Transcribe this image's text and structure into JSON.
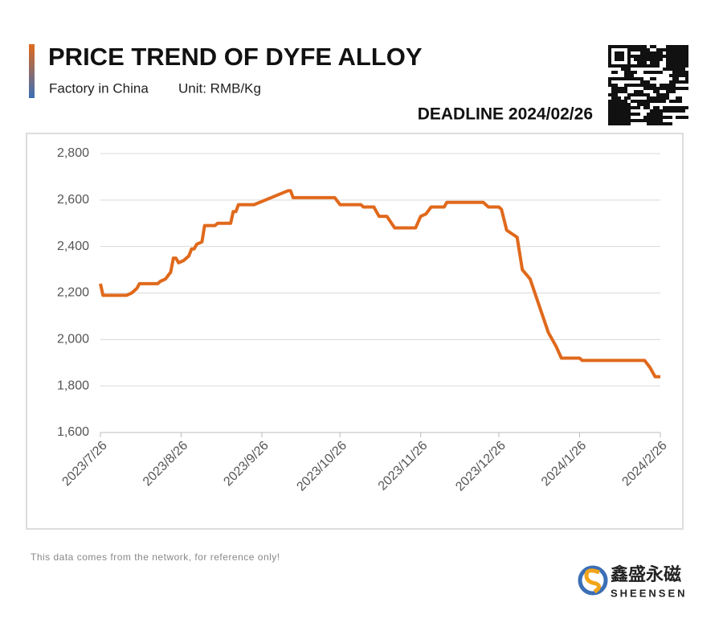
{
  "chart_data": {
    "type": "line",
    "title": "PRICE TREND OF DYFE ALLOY",
    "subtitle": "Factory in China",
    "unit": "Unit: RMB/Kg",
    "deadline": "DEADLINE 2024/02/26",
    "footnote": "This data comes from the network, for reference only!",
    "brand": "鑫盛永磁",
    "brand_latin": "SHEENSEN",
    "x": [
      "2023/7/26",
      "2023/7/27",
      "2023/8/5",
      "2023/8/7",
      "2023/8/9",
      "2023/8/10",
      "2023/8/17",
      "2023/8/18",
      "2023/8/20",
      "2023/8/22",
      "2023/8/23",
      "2023/8/24",
      "2023/8/25",
      "2023/8/27",
      "2023/8/29",
      "2023/8/30",
      "2023/8/31",
      "2023/9/1",
      "2023/9/3",
      "2023/9/4",
      "2023/9/8",
      "2023/9/9",
      "2023/9/14",
      "2023/9/15",
      "2023/9/16",
      "2023/9/17",
      "2023/9/23",
      "2023/10/6",
      "2023/10/7",
      "2023/10/8",
      "2023/10/24",
      "2023/10/26",
      "2023/11/3",
      "2023/11/4",
      "2023/11/8",
      "2023/11/9",
      "2023/11/10",
      "2023/11/13",
      "2023/11/16",
      "2023/11/24",
      "2023/11/26",
      "2023/11/28",
      "2023/11/30",
      "2023/12/5",
      "2023/12/6",
      "2023/12/20",
      "2023/12/22",
      "2023/12/26",
      "2023/12/27",
      "2023/12/29",
      "2024/1/2",
      "2024/1/4",
      "2024/1/7",
      "2024/1/14",
      "2024/1/17",
      "2024/1/19",
      "2024/1/26",
      "2024/1/27",
      "2024/2/20",
      "2024/2/22",
      "2024/2/24",
      "2024/2/26"
    ],
    "series": [
      {
        "name": "DyFe",
        "color": "#e0691c",
        "values": [
          2240,
          2190,
          2190,
          2200,
          2220,
          2240,
          2240,
          2250,
          2260,
          2290,
          2350,
          2350,
          2330,
          2340,
          2360,
          2390,
          2390,
          2410,
          2420,
          2490,
          2490,
          2500,
          2500,
          2550,
          2550,
          2580,
          2580,
          2640,
          2640,
          2610,
          2610,
          2580,
          2580,
          2570,
          2570,
          2550,
          2530,
          2530,
          2480,
          2480,
          2530,
          2540,
          2570,
          2570,
          2590,
          2590,
          2570,
          2570,
          2560,
          2470,
          2440,
          2300,
          2260,
          2030,
          1970,
          1920,
          1920,
          1910,
          1910,
          1880,
          1840,
          1840
        ]
      }
    ],
    "xlim": [
      "2023/7/26",
      "2024/2/26"
    ],
    "xticks": [
      "2023/7/26",
      "2023/8/26",
      "2023/9/26",
      "2023/10/26",
      "2023/11/26",
      "2023/12/26",
      "2024/1/26",
      "2024/2/26"
    ],
    "ylim": [
      1600,
      2800
    ],
    "yticks": [
      {
        "value": 1600,
        "label": "1,600"
      },
      {
        "value": 1800,
        "label": "1,800"
      },
      {
        "value": 2000,
        "label": "2,000"
      },
      {
        "value": 2200,
        "label": "2,200"
      },
      {
        "value": 2400,
        "label": "2,400"
      },
      {
        "value": 2600,
        "label": "2,600"
      },
      {
        "value": 2800,
        "label": "2,800"
      }
    ],
    "grid": true
  }
}
